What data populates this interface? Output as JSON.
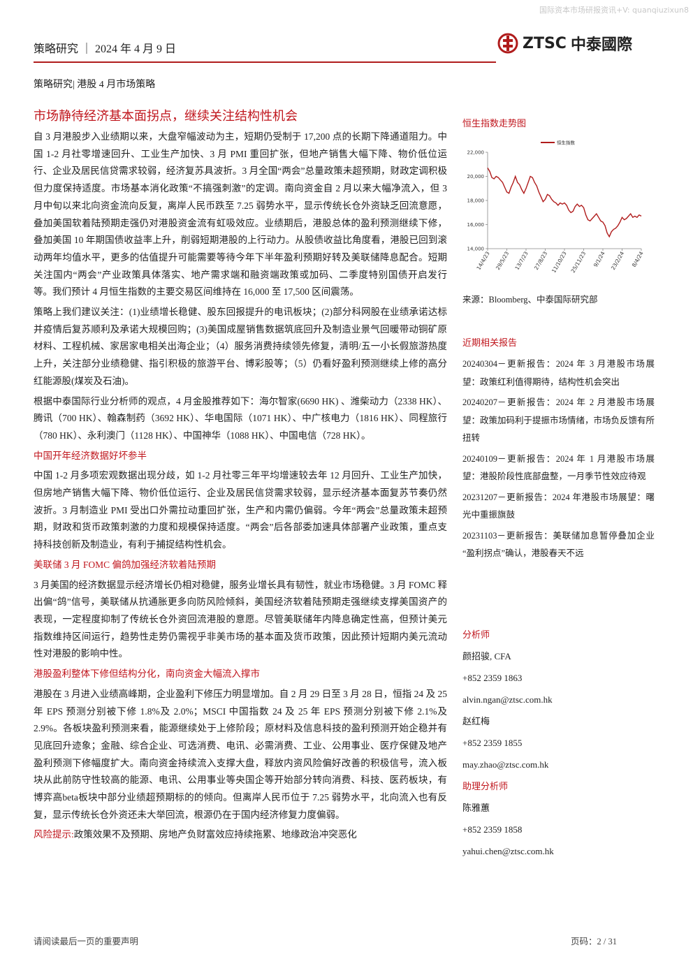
{
  "watermark": "国际资本市场研报资讯+V: quanqiuzixun8",
  "header": {
    "left": "策略研究 ｜ 2024 年 4 月 9 日",
    "logo_mark": "ZTSC",
    "logo_text": "中泰國際"
  },
  "subheader": "策略研究| 港股 4 月市场策略",
  "main": {
    "title": "市场静待经济基本面拐点，继续关注结构性机会",
    "paragraphs": [
      "自 3 月港股步入业绩期以来，大盘窄幅波动为主，短期仍受制于 17,200 点的长期下降通道阻力。中国 1-2 月社零增速回升、工业生产加快、3 月 PMI 重回扩张，但地产销售大幅下降、物价低位运行、企业及居民信贷需求较弱，经济复苏具波折。3 月全国“两会”总量政策未超预期，财政定调积极但力度保持适度。市场基本消化政策“不搞强刺激”的定调。南向资金自 2 月以来大幅净流入，但 3 月中旬以来北向资金流向反复，离岸人民币跌至 7.25 弱势水平，显示传统长仓外资缺乏回流意愿，叠加美国软着陆预期走强仍对港股资金流有虹吸效应。业绩期后，港股总体的盈利预测继续下修，叠加美国 10 年期国债收益率上升，削弱短期港股的上行动力。从股债收益比角度看，港股已回到滚动两年均值水平，更多的估值提升可能需要等待今年下半年盈利预期好转及美联储降息配合。短期关注国内“两会”产业政策具体落实、地产需求端和融资端政策或加码、二季度特别国债开启发行等。我们预计 4 月恒生指数的主要交易区间维持在 16,000 至 17,500 区间震荡。",
      "策略上我们建议关注：(1)业绩增长稳健、股东回报提升的电讯板块；(2)部分科网股在业绩承诺达标并疫情后复苏顺利及承诺大规模回购；(3)美国成屋销售数据筑底回升及制造业景气回暖带动铜矿原材料、工程机械、家居家电相关出海企业；（4）服务消费持续领先修复，清明/五一小长假旅游热度上升，关注部分业绩稳健、指引积极的旅游平台、博彩股等；（5）仍看好盈利预测继续上修的高分红能源股(煤炭及石油)。",
      "根据中泰国际行业分析师的观点，4 月金股推荐如下：海尔智家(6690 HK) 、潍柴动力（2338 HK）、腾讯（700 HK）、翰森制药（3692 HK）、华电国际（1071 HK）、中广核电力（1816 HK）、同程旅行（780 HK）、永利澳门（1128 HK）、中国神华（1088 HK）、中国电信（728 HK）。"
    ],
    "sections": [
      {
        "heading": "中国开年经济数据好坏参半",
        "text": "中国 1-2 月多项宏观数据出现分歧，如 1-2 月社零三年平均增速较去年 12 月回升、工业生产加快，但房地产销售大幅下降、物价低位运行、企业及居民信贷需求较弱，显示经济基本面复苏节奏仍然波折。3 月制造业 PMI 受出口外需拉动重回扩张，生产和内需仍偏弱。今年“两会”总量政策未超预期，财政和货币政策刺激的力度和规模保持适度。“两会”后各部委加速具体部署产业政策，重点支持科技创新及制造业，有利于捕捉结构性机会。"
      },
      {
        "heading": "美联储 3 月 FOMC 偏鸽加强经济软着陆预期",
        "text": "3 月美国的经济数据显示经济增长仍相对稳健，服务业增长具有韧性，就业市场稳健。3 月 FOMC 释出偏“鸽”信号，美联储从抗通胀更多向防风险倾斜，美国经济软着陆预期走强继续支撑美国资产的表现，一定程度抑制了传统长仓外资回流港股的意愿。尽管美联储年内降息确定性高，但预计美元指数维持区间运行，趋势性走势仍需视乎非美市场的基本面及货币政策，因此预计短期内美元流动性对港股的影响中性。"
      },
      {
        "heading": "港股盈利整体下修但结构分化，南向资金大幅流入撑市",
        "text": "港股在 3 月进入业绩高峰期，企业盈利下修压力明显增加。自 2 月 29 日至 3 月 28 日，恒指 24 及 25 年 EPS 预测分别被下修 1.8%及 2.0%；MSCI 中国指数 24 及 25 年 EPS 预测分别被下修 2.1%及 2.9%。各板块盈利预测来看，能源继续处于上修阶段；原材料及信息科技的盈利预测开始企稳并有见底回升迹象；金融、综合企业、可选消费、电讯、必需消费、工业、公用事业、医疗保健及地产盈利预测下修幅度扩大。南向资金持续流入支撑大盘，释放内资风险偏好改善的积极信号，流入板块从此前防守性较高的能源、电讯、公用事业等央国企等开始部分转向消费、科技、医药板块，有博弈高beta板块中部分业绩超预期标的的倾向。但离岸人民币位于 7.25 弱势水平，北向流入也有反复，显示传统长仓外资还未大举回流，根源仍在于国内经济修复力度偏弱。"
      }
    ],
    "risk_label": "风险提示:",
    "risk_text": "政策效果不及预期、房地产负财富效应持续拖累、地缘政治冲突恶化"
  },
  "chart_data": {
    "type": "line",
    "title": "恒生指数走势图",
    "source": "来源：Bloomberg、中泰国际研究部",
    "categories": [
      "14/4/23",
      null,
      null,
      null,
      null,
      null,
      null,
      null,
      null,
      "29/5/23",
      null,
      null,
      null,
      null,
      null,
      null,
      null,
      null,
      "13/7/23",
      null,
      null,
      null,
      null,
      null,
      null,
      null,
      null,
      "27/8/23",
      null,
      null,
      null,
      null,
      null,
      null,
      null,
      null,
      "11/10/23",
      null,
      null,
      null,
      null,
      null,
      null,
      null,
      null,
      "25/11/23",
      null,
      null,
      null,
      null,
      null,
      null,
      null,
      null,
      "9/1/24",
      null,
      null,
      null,
      null,
      null,
      null,
      null,
      null,
      "23/2/24",
      null,
      null,
      null,
      null,
      null,
      null,
      null,
      null,
      "8/4/24"
    ],
    "series": [
      {
        "name": "恒生指数",
        "color": "#b01c1c",
        "values": [
          20700,
          20400,
          19900,
          19800,
          20000,
          19900,
          19700,
          19500,
          19100,
          18700,
          18600,
          19100,
          19500,
          20000,
          19500,
          19300,
          18900,
          18600,
          19000,
          19500,
          20000,
          19900,
          19500,
          19200,
          18700,
          18300,
          17900,
          18100,
          18500,
          18400,
          18100,
          17900,
          17800,
          17600,
          17800,
          17700,
          17800,
          17600,
          17200,
          17000,
          17100,
          17500,
          17700,
          17500,
          17600,
          17400,
          16800,
          16400,
          16300,
          16500,
          16700,
          16900,
          16600,
          16300,
          16200,
          15900,
          15300,
          15000,
          15400,
          15600,
          15700,
          15900,
          16200,
          16600,
          16400,
          16500,
          16700,
          16900,
          16600,
          16700,
          16600,
          16800,
          16700
        ]
      }
    ],
    "ylim": [
      14000,
      22000
    ],
    "yticks": [
      {
        "value": 14000,
        "label": "14,000"
      },
      {
        "value": 16000,
        "label": "16,000"
      },
      {
        "value": 18000,
        "label": "18,000"
      },
      {
        "value": 20000,
        "label": "20,000"
      },
      {
        "value": 22000,
        "label": "22,000"
      }
    ],
    "legend": "top"
  },
  "sidebar": {
    "reports_title": "近期相关报告",
    "reports": [
      "20240304－更新报告：2024 年 3 月港股市场展望：政策红利值得期待，结构性机会突出",
      "20240207－更新报告：2024 年 2 月港股市场展望：政策加码利于提振市场情绪，市场负反馈有所扭转",
      "20240109－更新报告：2024 年 1 月港股市场展望：港股阶段性底部盘整，一月季节性效应待观",
      "20231207－更新报告：2024 年港股市场展望：曙光中重振旗鼓",
      "20231103－更新报告：美联储加息暂停叠加企业“盈利拐点”确认，港股春天不远"
    ],
    "analyst_title": "分析师",
    "analysts": [
      {
        "name": "颜招骏, CFA",
        "phone": "+852 2359 1863",
        "email": "alvin.ngan@ztsc.com.hk"
      },
      {
        "name": "赵红梅",
        "phone": "+852 2359 1855",
        "email": "may.zhao@ztsc.com.hk"
      }
    ],
    "assistant_title": "助理分析师",
    "assistants": [
      {
        "name": "陈雅蕙",
        "phone": "+852 2359 1858",
        "email": "yahui.chen@ztsc.com.hk"
      }
    ]
  },
  "footer": {
    "left": "请阅读最后一页的重要声明",
    "right": "页码：2 / 31"
  }
}
